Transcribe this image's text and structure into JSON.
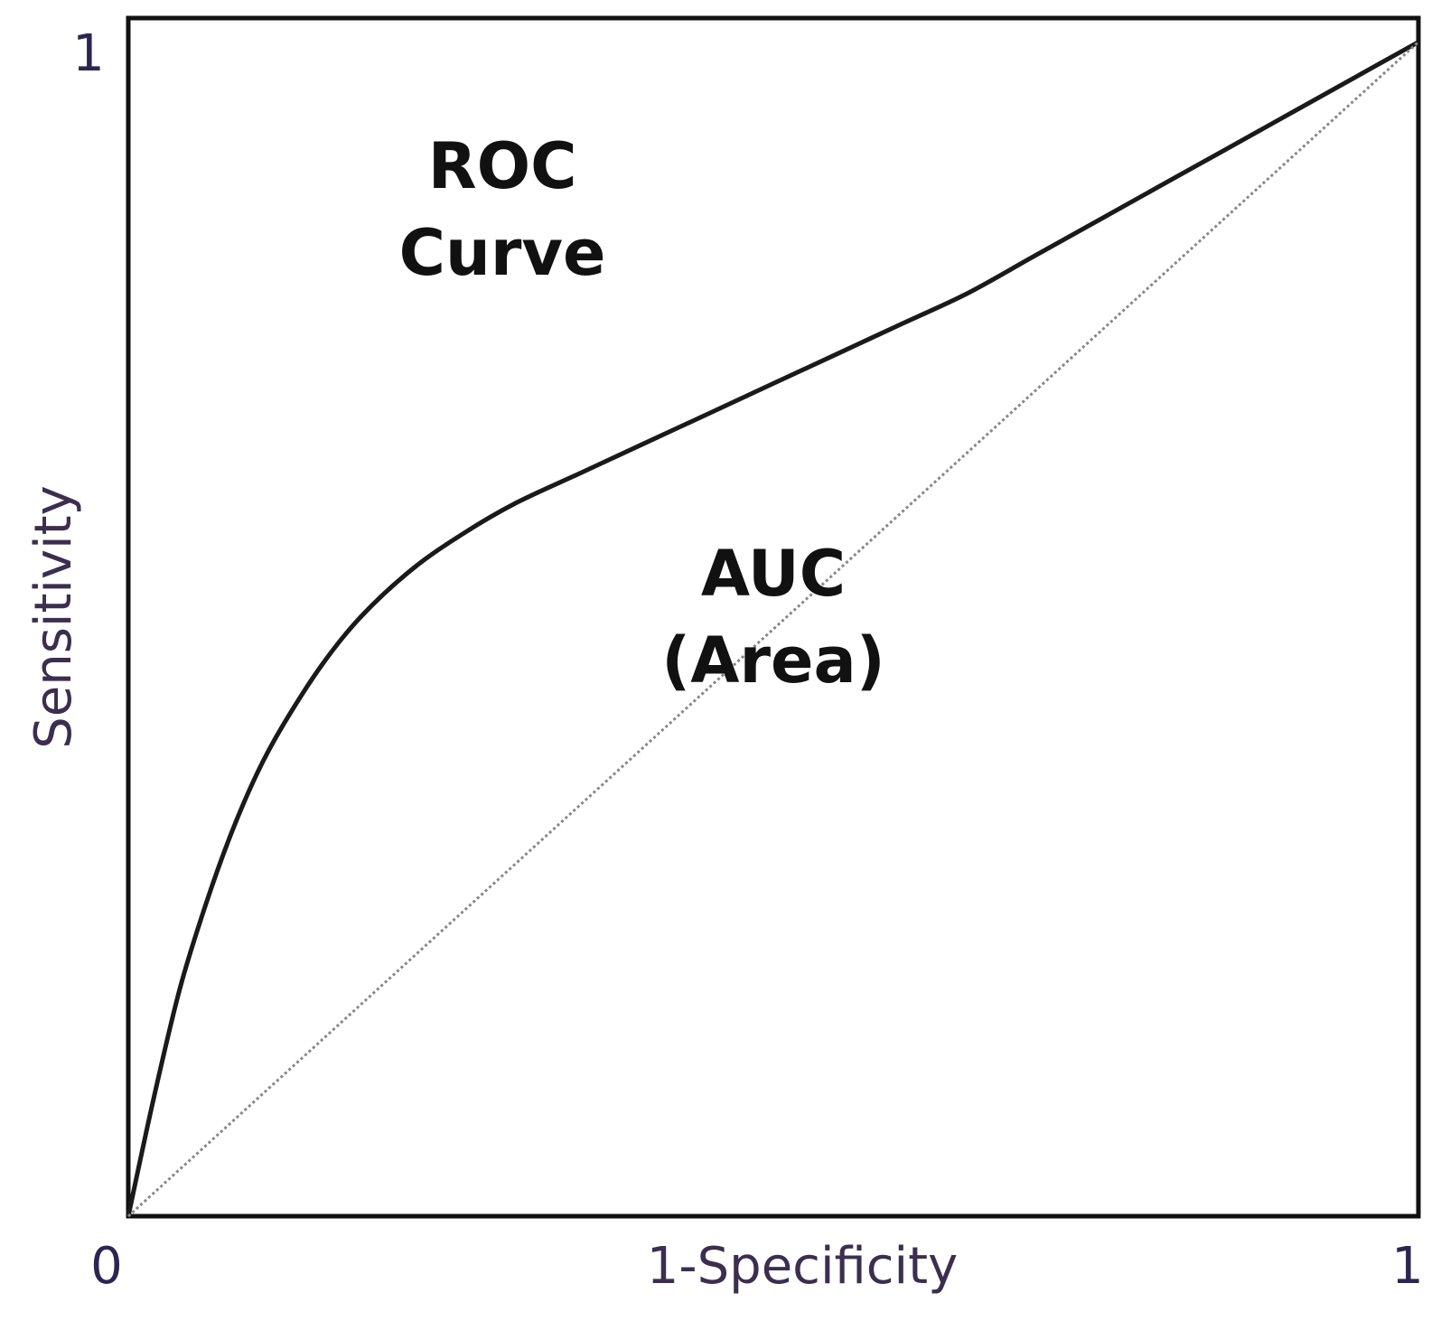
{
  "chart_data": {
    "type": "line",
    "xlabel": "1-Specificity",
    "ylabel": "Sensitivity",
    "xlim": [
      0,
      1
    ],
    "ylim": [
      0,
      1
    ],
    "x_ticks": [
      "0",
      "1"
    ],
    "y_ticks": [
      "1"
    ],
    "grid": false,
    "series": [
      {
        "style": "solid",
        "color": "#1a1a1a",
        "x": [
          0,
          0.02,
          0.04,
          0.06,
          0.08,
          0.1,
          0.12,
          0.15,
          0.18,
          0.22,
          0.26,
          0.3,
          0.35,
          0.4,
          0.45,
          0.5,
          0.55,
          0.6,
          0.65,
          0.7,
          0.75,
          0.8,
          0.85,
          0.9,
          0.95,
          1.0
        ],
        "y": [
          0,
          0.1,
          0.19,
          0.26,
          0.32,
          0.37,
          0.41,
          0.46,
          0.5,
          0.54,
          0.57,
          0.595,
          0.62,
          0.645,
          0.67,
          0.695,
          0.72,
          0.745,
          0.77,
          0.8,
          0.83,
          0.86,
          0.89,
          0.92,
          0.95,
          0.98
        ]
      },
      {
        "style": "dotted",
        "color": "#888888",
        "x": [
          0,
          1
        ],
        "y": [
          0,
          0.98
        ]
      }
    ],
    "annotations": [
      {
        "lines": [
          "ROC",
          "Curve"
        ],
        "x": 0.29,
        "y": 0.84
      },
      {
        "lines": [
          "AUC",
          "(Area)"
        ],
        "x": 0.5,
        "y": 0.5
      }
    ]
  }
}
